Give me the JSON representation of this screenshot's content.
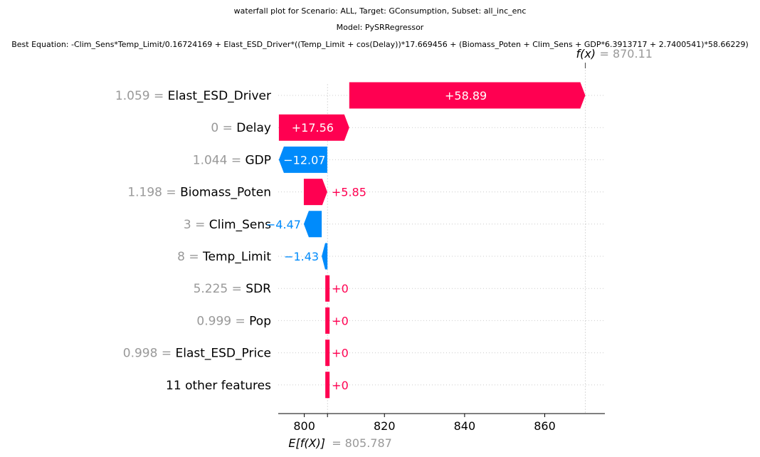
{
  "titles": {
    "line1": "waterfall plot for Scenario: ALL, Target: GConsumption, Subset: all_inc_enc",
    "line2": "Model: PySRRegressor",
    "line3": "Best Equation: -Clim_Sens*Temp_Limit/0.16724169 + Elast_ESD_Driver*((Temp_Limit + cos(Delay))*17.669456 + (Biomass_Poten + Clim_Sens + GDP*6.3913717 + 2.7400541)*58.66229)"
  },
  "colors": {
    "positive": "#ff0051",
    "negative": "#008bfb",
    "muted": "#999999",
    "grid": "#cccccc"
  },
  "chart_data": {
    "type": "waterfall",
    "base_value": 805.787,
    "base_label": "E[f(X)]",
    "base_text": "805.787",
    "output_value": 870.11,
    "output_label": "f(x)",
    "output_text": "870.11",
    "x_ticks": [
      800,
      820,
      840,
      860
    ],
    "xlim": [
      793.5,
      875
    ],
    "features": [
      {
        "value": "1.059",
        "name": "Elast_ESD_Driver",
        "contribution": 58.89,
        "label": "+58.89"
      },
      {
        "value": "0",
        "name": "Delay",
        "contribution": 17.56,
        "label": "+17.56"
      },
      {
        "value": "1.044",
        "name": "GDP",
        "contribution": -12.07,
        "label": "−12.07"
      },
      {
        "value": "1.198",
        "name": "Biomass_Poten",
        "contribution": 5.85,
        "label": "+5.85"
      },
      {
        "value": "3",
        "name": "Clim_Sens",
        "contribution": -4.47,
        "label": "−4.47"
      },
      {
        "value": "8",
        "name": "Temp_Limit",
        "contribution": -1.43,
        "label": "−1.43"
      },
      {
        "value": "5.225",
        "name": "SDR",
        "contribution": 0,
        "label": "+0"
      },
      {
        "value": "0.999",
        "name": "Pop",
        "contribution": 0,
        "label": "+0"
      },
      {
        "value": "0.998",
        "name": "Elast_ESD_Price",
        "contribution": 0,
        "label": "+0"
      },
      {
        "value": "",
        "name": "11 other features",
        "contribution": 0,
        "label": "+0"
      }
    ]
  }
}
